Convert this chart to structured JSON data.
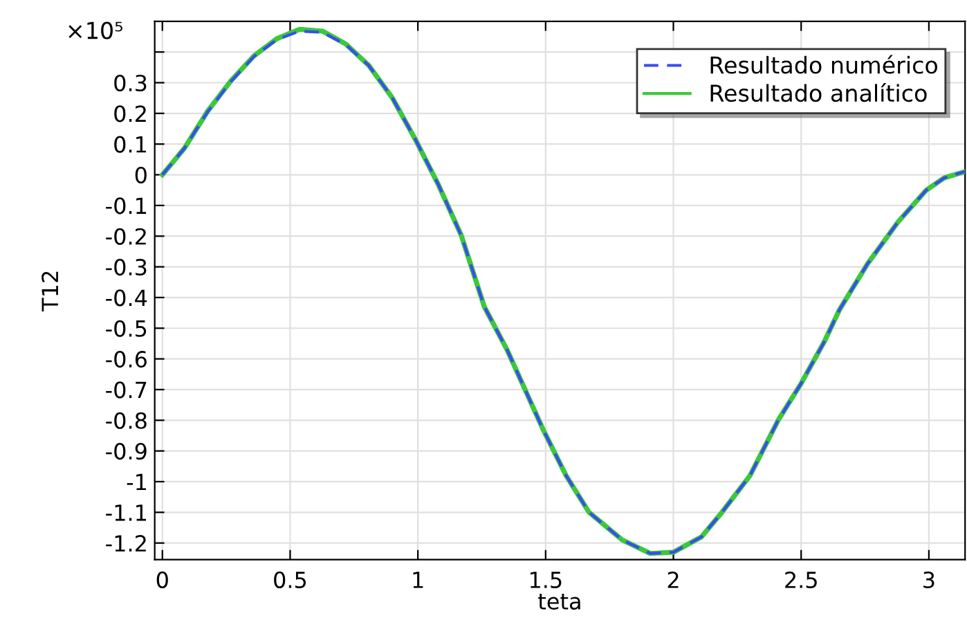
{
  "chart_data": {
    "type": "line",
    "xlabel": "teta",
    "ylabel": "T12",
    "annotations": [
      "×10⁵"
    ],
    "xlim": [
      -0.03,
      3.1416
    ],
    "ylim": [
      -1.254,
      0.5
    ],
    "xticks": [
      0,
      0.5,
      1,
      1.5,
      2,
      2.5,
      3
    ],
    "yticks": [
      {
        "value": 0.4,
        "label": null
      },
      0.3,
      0.2,
      0.1,
      0,
      -0.1,
      -0.2,
      -0.3,
      -0.4,
      -0.5,
      -0.6,
      -0.7,
      -0.8,
      -0.9,
      -1,
      -1.1,
      -1.2
    ],
    "grid": true,
    "legend": "top right",
    "marker": "none",
    "x": [
      0,
      0.086,
      0.177,
      0.268,
      0.358,
      0.447,
      0.537,
      0.627,
      0.718,
      0.808,
      0.899,
      0.989,
      1.08,
      1.17,
      1.26,
      1.35,
      1.49,
      1.58,
      1.67,
      1.8,
      1.91,
      2.0,
      2.11,
      2.19,
      2.3,
      2.41,
      2.5,
      2.59,
      2.65,
      2.76,
      2.88,
      2.99,
      3.06,
      3.14
    ],
    "series": [
      {
        "name": "Resultado numérico",
        "color": "#3a4cf0",
        "line_style": "dashed",
        "values": [
          0,
          0.086,
          0.205,
          0.304,
          0.385,
          0.44,
          0.468,
          0.464,
          0.424,
          0.356,
          0.252,
          0.117,
          -0.032,
          -0.198,
          -0.43,
          -0.572,
          -0.83,
          -0.98,
          -1.1,
          -1.19,
          -1.234,
          -1.23,
          -1.18,
          -1.1,
          -0.98,
          -0.8,
          -0.68,
          -0.545,
          -0.44,
          -0.29,
          -0.153,
          -0.05,
          -0.01,
          0.01
        ]
      },
      {
        "name": "Resultado analítico",
        "color": "#3cc83c",
        "line_style": "solid",
        "values": [
          0,
          0.086,
          0.207,
          0.306,
          0.387,
          0.443,
          0.474,
          0.468,
          0.426,
          0.356,
          0.252,
          0.117,
          -0.032,
          -0.198,
          -0.43,
          -0.572,
          -0.83,
          -0.98,
          -1.1,
          -1.19,
          -1.234,
          -1.23,
          -1.18,
          -1.1,
          -0.98,
          -0.8,
          -0.68,
          -0.545,
          -0.44,
          -0.29,
          -0.153,
          -0.05,
          -0.01,
          0.01
        ]
      }
    ]
  }
}
